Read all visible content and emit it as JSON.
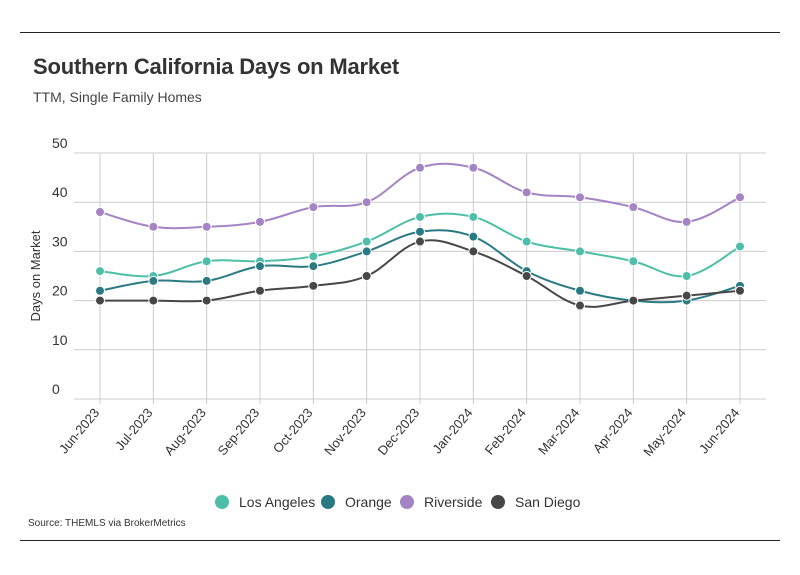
{
  "header": {
    "title": "Southern California Days on Market",
    "subtitle": "TTM, Single Family Homes"
  },
  "footer": {
    "source": "Source:  THEMLS via BrokerMetrics"
  },
  "chart_data": {
    "type": "line",
    "title": "Southern California Days on Market",
    "subtitle": "TTM, Single Family Homes",
    "xlabel": "",
    "ylabel": "Days on Market",
    "ylim": [
      0,
      50
    ],
    "yticks": [
      0,
      10,
      20,
      30,
      40,
      50
    ],
    "grid": true,
    "legend_position": "bottom",
    "categories": [
      "Jun-2023",
      "Jul-2023",
      "Aug-2023",
      "Sep-2023",
      "Oct-2023",
      "Nov-2023",
      "Dec-2023",
      "Jan-2024",
      "Feb-2024",
      "Mar-2024",
      "Apr-2024",
      "May-2024",
      "Jun-2024"
    ],
    "series": [
      {
        "name": "Los Angeles",
        "color": "#4dbfa8",
        "values": [
          26,
          25,
          28,
          28,
          29,
          32,
          37,
          37,
          32,
          30,
          28,
          25,
          31
        ]
      },
      {
        "name": "Orange",
        "color": "#2a7a84",
        "values": [
          22,
          24,
          24,
          27,
          27,
          30,
          34,
          33,
          26,
          22,
          20,
          20,
          23
        ]
      },
      {
        "name": "Riverside",
        "color": "#a484c4",
        "values": [
          38,
          35,
          35,
          36,
          39,
          40,
          47,
          47,
          42,
          41,
          39,
          36,
          41
        ]
      },
      {
        "name": "San Diego",
        "color": "#474747",
        "values": [
          20,
          20,
          20,
          22,
          23,
          25,
          32,
          30,
          25,
          19,
          20,
          21,
          22
        ]
      }
    ]
  }
}
